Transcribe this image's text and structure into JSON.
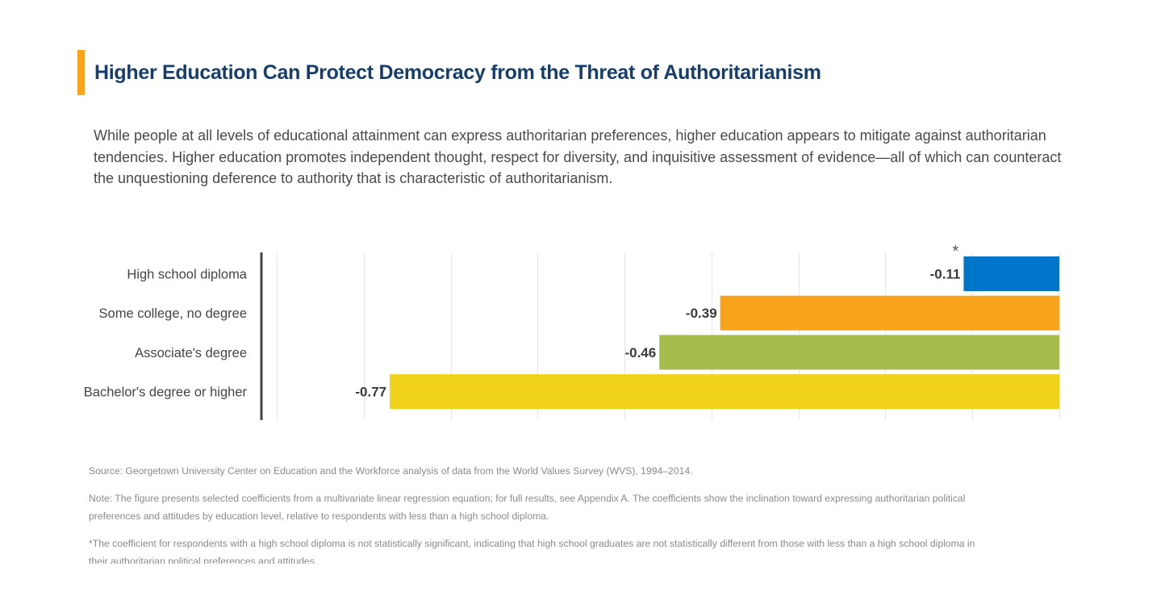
{
  "title": "Higher Education Can Protect Democracy from the Threat of Authoritarianism",
  "subtitle": "While people at all levels of educational attainment can express authoritarian preferences, higher education appears to mitigate against authoritarian tendencies. Higher education promotes independent thought, respect for diversity, and inquisitive assessment of evidence—all of which can counteract the unquestioning deference to authority that is characteristic of authoritarianism.",
  "chart_data": {
    "type": "bar",
    "orientation": "horizontal",
    "categories": [
      "High school diploma",
      "Some college, no degree",
      "Associate's degree",
      "Bachelor's degree or higher"
    ],
    "values": [
      -0.11,
      -0.39,
      -0.46,
      -0.77
    ],
    "value_labels": [
      "-0.11",
      "-0.39",
      "-0.46",
      "-0.77"
    ],
    "annotations": [
      "*",
      "",
      "",
      ""
    ],
    "colors": [
      "#0074c8",
      "#f9a31d",
      "#a6bd4e",
      "#f0d21b"
    ],
    "xlim": [
      -0.9,
      0
    ],
    "grid_step": 0.1,
    "grid": true
  },
  "footnotes": {
    "source": "Source: Georgetown University Center on Education and the Workforce analysis of data from the World Values Survey (WVS), 1994–2014.",
    "note": "Note: The figure presents selected coefficients from a multivariate linear regression equation; for full results, see Appendix A. The coefficients show the inclination toward expressing authoritarian political preferences and attitudes by education level, relative to respondents with less than a high school diploma.",
    "significance": "*The coefficient for respondents with a high school diploma is not statistically significant, indicating that high school graduates are not statistically different from those with less than a high school diploma in their authoritarian political preferences and attitudes."
  },
  "colors": {
    "accent": "#f9a31d",
    "title": "#163e6c"
  }
}
